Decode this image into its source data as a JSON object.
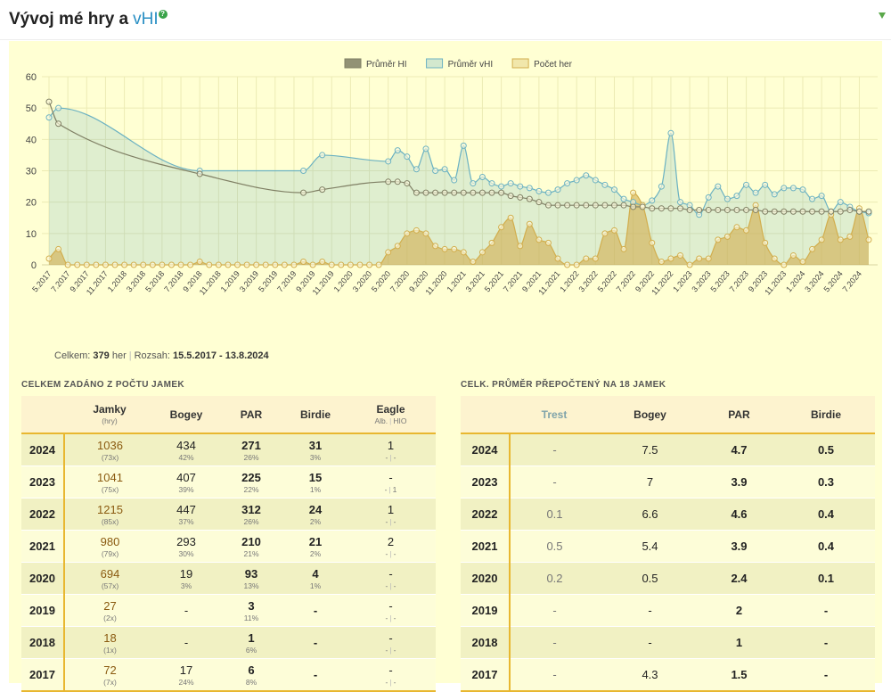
{
  "header": {
    "title": "Vývoj mé hry a",
    "link": "vHI",
    "help": "?"
  },
  "chart_data": {
    "type": "line",
    "categories": [
      "5.2017",
      null,
      "7.2017",
      null,
      "9.2017",
      null,
      "11.2017",
      null,
      "1.2018",
      null,
      "3.2018",
      null,
      "5.2018",
      null,
      "7.2018",
      null,
      "9.2018",
      null,
      "11.2018",
      null,
      "1.2019",
      null,
      "3.2019",
      null,
      "5.2019",
      null,
      "7.2019",
      null,
      "9.2019",
      null,
      "11.2019",
      null,
      "1.2020",
      null,
      "3.2020",
      null,
      "5.2020",
      null,
      "7.2020",
      null,
      "9.2020",
      null,
      "11.2020",
      null,
      "1.2021",
      null,
      "3.2021",
      null,
      "5.2021",
      null,
      "7.2021",
      null,
      "9.2021",
      null,
      "11.2021",
      null,
      "1.2022",
      null,
      "3.2022",
      null,
      "5.2022",
      null,
      "7.2022",
      null,
      "9.2022",
      null,
      "11.2022",
      null,
      "1.2023",
      null,
      "3.2023",
      null,
      "5.2023",
      null,
      "7.2023",
      null,
      "9.2023",
      null,
      "11.2023",
      null,
      "1.2024",
      null,
      "3.2024",
      null,
      "5.2024",
      null,
      "7.2024",
      null
    ],
    "series": [
      {
        "name": "Průměr HI",
        "color": "#7f7f64",
        "area": false,
        "x": [
          0,
          1,
          16,
          27,
          29,
          36,
          37,
          38,
          39,
          40,
          41,
          42,
          43,
          44,
          45,
          46,
          47,
          48,
          49,
          50,
          51,
          52,
          53,
          54,
          55,
          56,
          57,
          58,
          59,
          60,
          61,
          62,
          63,
          64,
          65,
          66,
          67,
          68,
          69,
          70,
          71,
          72,
          73,
          74,
          75,
          76,
          77,
          78,
          79,
          80,
          81,
          82,
          83,
          84,
          85,
          86,
          87
        ],
        "values": [
          52,
          45,
          29,
          23,
          24,
          26.5,
          26.5,
          26,
          23,
          23,
          23,
          23,
          23,
          23,
          23,
          23,
          23,
          23,
          22,
          21.5,
          21,
          20,
          19,
          19,
          19,
          19,
          19,
          19,
          19,
          19,
          19,
          18.5,
          18.5,
          18,
          18,
          18,
          18,
          17.5,
          17.5,
          17.5,
          17.5,
          17.5,
          17.5,
          17.5,
          17.5,
          17,
          17,
          17,
          17,
          17,
          17,
          17,
          17,
          17,
          17.5,
          17,
          17
        ]
      },
      {
        "name": "Průměr vHI",
        "color": "#6cb2c2",
        "area": true,
        "x": [
          0,
          1,
          16,
          27,
          29,
          36,
          37,
          38,
          39,
          40,
          41,
          42,
          43,
          44,
          45,
          46,
          47,
          48,
          49,
          50,
          51,
          52,
          53,
          54,
          55,
          56,
          57,
          58,
          59,
          60,
          61,
          62,
          63,
          64,
          65,
          66,
          67,
          68,
          69,
          70,
          71,
          72,
          73,
          74,
          75,
          76,
          77,
          78,
          79,
          80,
          81,
          82,
          83,
          84,
          85,
          86,
          87
        ],
        "values": [
          47,
          50,
          30,
          30,
          35,
          33,
          36.5,
          34.5,
          30.5,
          37,
          30,
          30.5,
          27,
          38,
          26,
          28,
          26,
          25,
          26,
          25,
          24.5,
          23.5,
          23,
          24,
          26,
          27,
          28.5,
          27,
          25.5,
          24,
          21,
          20,
          19,
          20.5,
          25,
          42,
          20,
          19,
          16,
          21.5,
          25,
          21,
          22,
          25.5,
          23,
          25.5,
          22.5,
          24.5,
          24.5,
          24,
          21,
          22,
          17,
          20,
          18.5,
          17,
          16.5
        ]
      },
      {
        "name": "Počet her",
        "color": "#d2ae4e",
        "area": true,
        "values": [
          2,
          5,
          0,
          0,
          0,
          0,
          0,
          0,
          0,
          0,
          0,
          0,
          0,
          0,
          0,
          0,
          1,
          0,
          0,
          0,
          0,
          0,
          0,
          0,
          0,
          0,
          0,
          1,
          0,
          1,
          0,
          0,
          0,
          0,
          0,
          0,
          4,
          6,
          10,
          11,
          10,
          6,
          5,
          5,
          4,
          1,
          4,
          7,
          12,
          15,
          6,
          13,
          8,
          7,
          2,
          0,
          0,
          2,
          2,
          10,
          11,
          5,
          23,
          19,
          7,
          1,
          2,
          3,
          0,
          2,
          2,
          8,
          9,
          12,
          11,
          19,
          7,
          2,
          0,
          3,
          1,
          5,
          8,
          16,
          8,
          9,
          18,
          8
        ]
      }
    ],
    "ylim": [
      0,
      60
    ],
    "yticks": [
      0,
      10,
      20,
      30,
      40,
      50,
      60
    ],
    "grid": true,
    "legend": "top"
  },
  "summary": {
    "total_label": "Celkem:",
    "total": "379",
    "total_unit": "her",
    "range_label": "Rozsah:",
    "range": "15.5.2017 - 13.8.2024"
  },
  "left_table": {
    "title": "CELKEM ZADÁNO Z POČTU JAMEK",
    "headers": {
      "jamky": "Jamky",
      "hry": "(hry)",
      "bogey": "Bogey",
      "par": "PAR",
      "birdie": "Birdie",
      "eagle": "Eagle",
      "alb": "Alb.",
      "hio": "HIO"
    },
    "rows": [
      {
        "year": "2024",
        "jamky": "1036",
        "hry": "(73x)",
        "bogey": "434",
        "bogey_pct": "42%",
        "par": "271",
        "par_pct": "26%",
        "birdie": "31",
        "birdie_pct": "3%",
        "eagle": "1",
        "alb": "-",
        "hio": "-"
      },
      {
        "year": "2023",
        "jamky": "1041",
        "hry": "(75x)",
        "bogey": "407",
        "bogey_pct": "39%",
        "par": "225",
        "par_pct": "22%",
        "birdie": "15",
        "birdie_pct": "1%",
        "eagle": "-",
        "alb": "-",
        "hio": "1"
      },
      {
        "year": "2022",
        "jamky": "1215",
        "hry": "(85x)",
        "bogey": "447",
        "bogey_pct": "37%",
        "par": "312",
        "par_pct": "26%",
        "birdie": "24",
        "birdie_pct": "2%",
        "eagle": "1",
        "alb": "-",
        "hio": "-"
      },
      {
        "year": "2021",
        "jamky": "980",
        "hry": "(79x)",
        "bogey": "293",
        "bogey_pct": "30%",
        "par": "210",
        "par_pct": "21%",
        "birdie": "21",
        "birdie_pct": "2%",
        "eagle": "2",
        "alb": "-",
        "hio": "-"
      },
      {
        "year": "2020",
        "jamky": "694",
        "hry": "(57x)",
        "bogey": "19",
        "bogey_pct": "3%",
        "par": "93",
        "par_pct": "13%",
        "birdie": "4",
        "birdie_pct": "1%",
        "eagle": "-",
        "alb": "-",
        "hio": "-"
      },
      {
        "year": "2019",
        "jamky": "27",
        "hry": "(2x)",
        "bogey": "-",
        "par": "3",
        "par_pct": "11%",
        "birdie": "-",
        "eagle": "-",
        "alb": "-",
        "hio": "-"
      },
      {
        "year": "2018",
        "jamky": "18",
        "hry": "(1x)",
        "bogey": "-",
        "par": "1",
        "par_pct": "6%",
        "birdie": "-",
        "eagle": "-",
        "alb": "-",
        "hio": "-"
      },
      {
        "year": "2017",
        "jamky": "72",
        "hry": "(7x)",
        "bogey": "17",
        "bogey_pct": "24%",
        "par": "6",
        "par_pct": "8%",
        "birdie": "-",
        "eagle": "-",
        "alb": "-",
        "hio": "-"
      }
    ]
  },
  "right_table": {
    "title": "CELK. PRŮMĚR PŘEPOČTENÝ NA 18 JAMEK",
    "headers": {
      "trest": "Trest",
      "bogey": "Bogey",
      "par": "PAR",
      "birdie": "Birdie"
    },
    "rows": [
      {
        "year": "2024",
        "trest": "-",
        "bogey": "7.5",
        "par": "4.7",
        "birdie": "0.5"
      },
      {
        "year": "2023",
        "trest": "-",
        "bogey": "7",
        "par": "3.9",
        "birdie": "0.3"
      },
      {
        "year": "2022",
        "trest": "0.1",
        "bogey": "6.6",
        "par": "4.6",
        "birdie": "0.4"
      },
      {
        "year": "2021",
        "trest": "0.5",
        "bogey": "5.4",
        "par": "3.9",
        "birdie": "0.4"
      },
      {
        "year": "2020",
        "trest": "0.2",
        "bogey": "0.5",
        "par": "2.4",
        "birdie": "0.1"
      },
      {
        "year": "2019",
        "trest": "-",
        "bogey": "-",
        "par": "2",
        "birdie": "-"
      },
      {
        "year": "2018",
        "trest": "-",
        "bogey": "-",
        "par": "1",
        "birdie": "-"
      },
      {
        "year": "2017",
        "trest": "-",
        "bogey": "4.3",
        "par": "1.5",
        "birdie": "-"
      }
    ]
  }
}
